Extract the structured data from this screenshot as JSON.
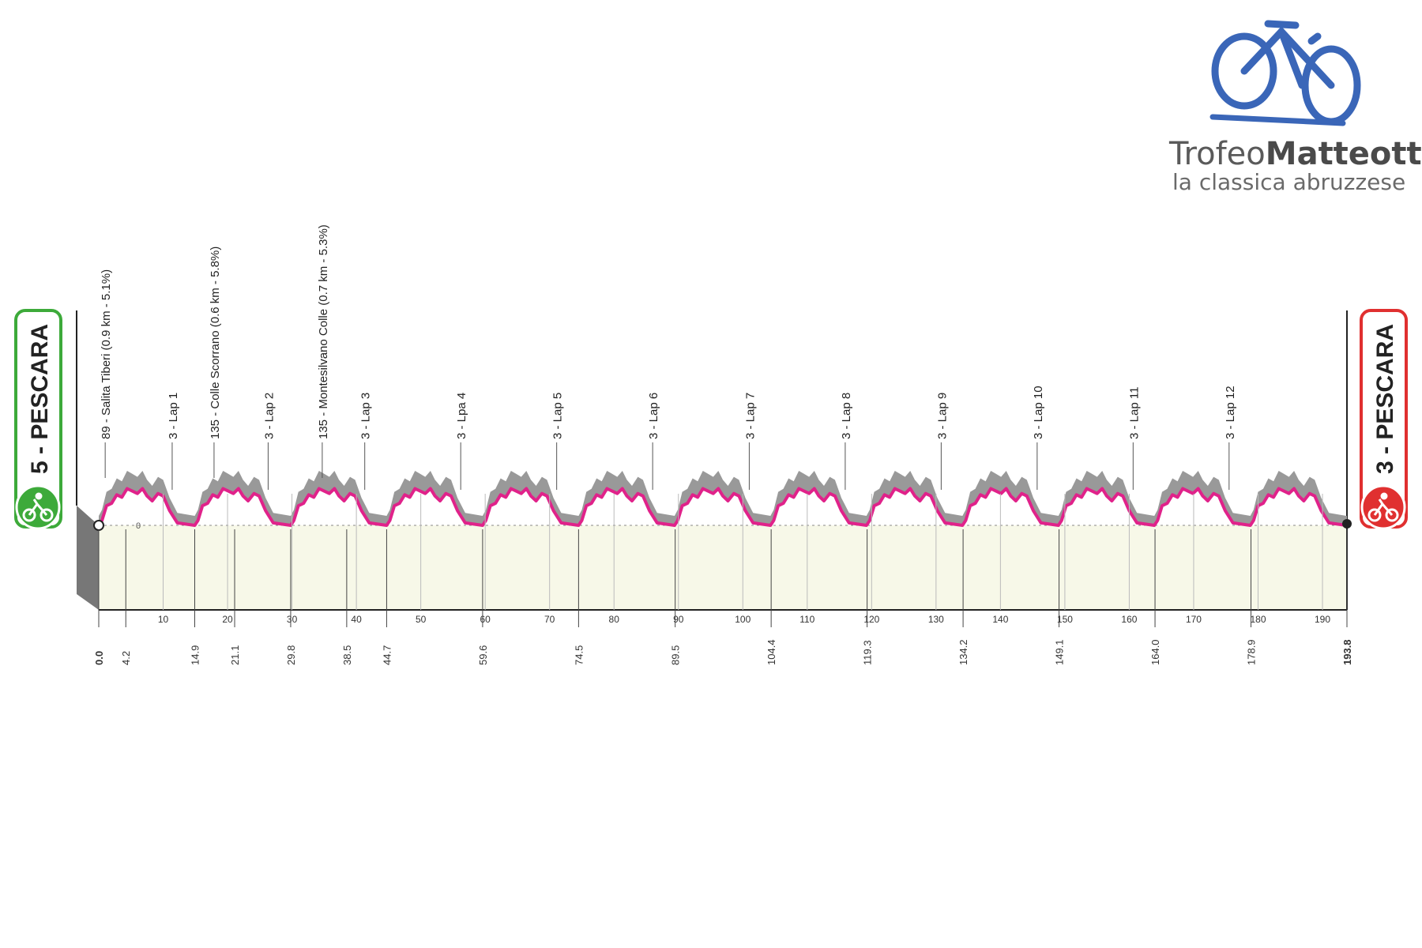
{
  "logo": {
    "brand_light": "Trofeo",
    "brand_bold": "Matteotti",
    "tagline": "la classica abruzzese",
    "color": "#3a66b8"
  },
  "start_badge": {
    "label": "5 - PESCARA",
    "color": "#3daa3a",
    "icon": "cyclist-icon"
  },
  "finish_badge": {
    "label": "3 - PESCARA",
    "color": "#e03030",
    "icon": "cyclist-icon"
  },
  "chart_data": {
    "type": "area",
    "title": "",
    "xlabel": "",
    "ylabel": "",
    "xlim": [
      0,
      193.8
    ],
    "zero_label": "0",
    "x_ticks": [
      10,
      20,
      30,
      40,
      50,
      60,
      70,
      80,
      90,
      100,
      110,
      120,
      130,
      140,
      150,
      160,
      170,
      180,
      190
    ],
    "km_markers": [
      "0.0",
      "4.2",
      "14.9",
      "21.1",
      "29.8",
      "38.5",
      "44.7",
      "59.6",
      "74.5",
      "89.5",
      "104.4",
      "119.3",
      "134.2",
      "149.1",
      "164.0",
      "178.9",
      "193.8"
    ],
    "climbs": [
      {
        "km": 1,
        "label": "89 - Salita Tiberi (0.9 km - 5.1%)"
      },
      {
        "km": 17.9,
        "label": "135 - Colle Scorrano (0.6 km - 5.8%)"
      },
      {
        "km": 34.7,
        "label": "135 - Montesilvano Colle (0.7 km - 5.3%)"
      }
    ],
    "laps": [
      {
        "km": 11.4,
        "label": "3 - Lap 1"
      },
      {
        "km": 26.3,
        "label": "3 - Lap 2"
      },
      {
        "km": 41.3,
        "label": "3 - Lap 3"
      },
      {
        "km": 56.2,
        "label": "3 - Lpa 4"
      },
      {
        "km": 71.1,
        "label": "3 - Lap 5"
      },
      {
        "km": 86.0,
        "label": "3 - Lap 6"
      },
      {
        "km": 101.0,
        "label": "3 - Lap 7"
      },
      {
        "km": 115.9,
        "label": "3 - Lap 8"
      },
      {
        "km": 130.8,
        "label": "3 - Lap 9"
      },
      {
        "km": 145.7,
        "label": "3 - Lap 10"
      },
      {
        "km": 160.6,
        "label": "3 - Lap 11"
      },
      {
        "km": 175.5,
        "label": "3 - Lap 12"
      }
    ],
    "colors": {
      "profile_line": "#e0228a",
      "profile_face": "#999999",
      "profile_base": "#f7f8e8",
      "left_wall": "#777777"
    }
  }
}
